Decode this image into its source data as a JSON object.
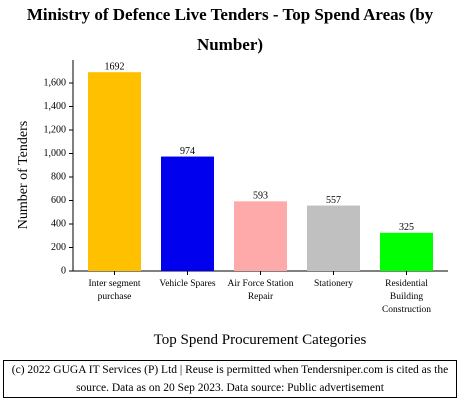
{
  "chart_data": {
    "type": "bar",
    "title": "Ministry of Defence  Live Tenders - Top Spend Areas (by Number)",
    "x_label": "Top Spend Procurement Categories",
    "y_label": "Number of Tenders",
    "categories": [
      "Inter segment purchase",
      "Vehicle Spares",
      "Air Force Station Repair",
      "Stationery",
      "Residential Building Construction"
    ],
    "values": [
      1692,
      974,
      593,
      557,
      325
    ],
    "colors": [
      "#ffc000",
      "#0000ee",
      "#ffaaaa",
      "#c0c0c0",
      "#00ff00"
    ],
    "ylim": [
      0,
      1800
    ],
    "yticks": [
      0,
      200,
      400,
      600,
      800,
      {
        "value": 1000,
        "label": "1,000"
      },
      {
        "value": 1200,
        "label": "1,200"
      },
      {
        "value": 1400,
        "label": "1,400"
      },
      {
        "value": 1600,
        "label": "1,600"
      }
    ],
    "footer": "(c) 2022 GUGA IT Services (P) Ltd | Reuse is permitted when Tendersniper.com is cited as the source. Data as on 20 Sep 2023. Data source: Public advertisement"
  }
}
